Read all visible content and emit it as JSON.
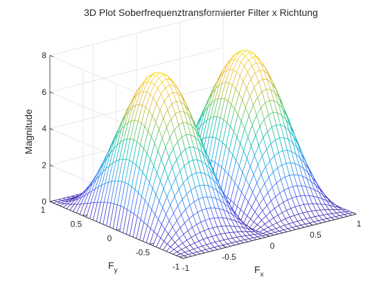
{
  "chart_data": {
    "type": "surface",
    "title": "3D Plot Soberfrequenztransformierter Filter x Richtung",
    "xlabel": {
      "base": "F",
      "sub": "x"
    },
    "ylabel": {
      "base": "F",
      "sub": "y"
    },
    "zlabel": "Magnitude",
    "xlim": [
      -1,
      1
    ],
    "ylim": [
      -1,
      1
    ],
    "zlim": [
      0,
      8
    ],
    "x_ticks": [
      "-1",
      "-0.5",
      "0",
      "0.5",
      "1"
    ],
    "y_ticks": [
      "-1",
      "-0.5",
      "0",
      "0.5",
      "1"
    ],
    "z_ticks": [
      "0",
      "2",
      "4",
      "6",
      "8"
    ],
    "grid": true,
    "colormap": "parula",
    "colormap_stops": [
      "#3e26a8",
      "#4749ea",
      "#2f82f7",
      "#17a9de",
      "#06bcb0",
      "#4fc66b",
      "#b1bc3a",
      "#f3b938",
      "#f9e11d"
    ],
    "peak_magnitude": 8,
    "peaks_at_fx": [
      -0.5,
      0.5
    ],
    "function": "|2 sin(pi Fx)| * (2 + 2 cos(pi Fy))",
    "mesh_lines": 41
  }
}
